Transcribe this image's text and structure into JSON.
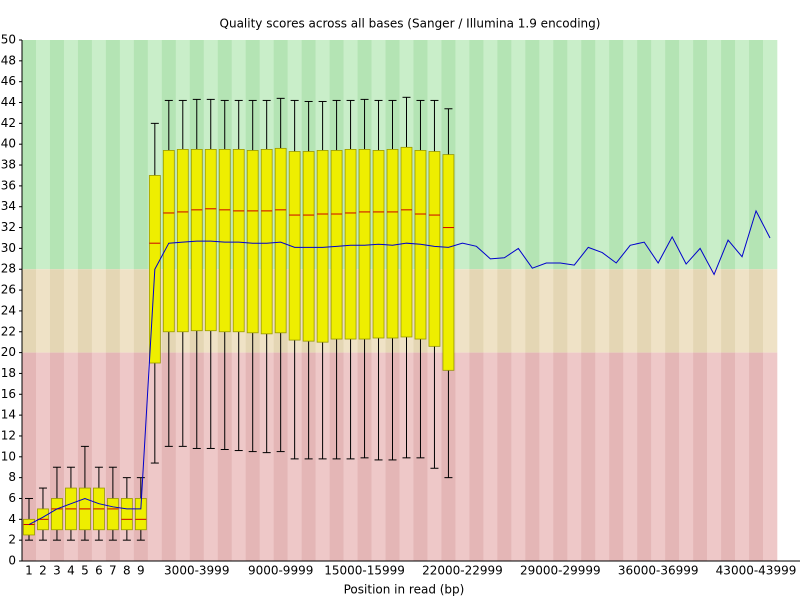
{
  "chart_data": {
    "type": "boxplot",
    "title": "Quality scores across all bases (Sanger / Illumina 1.9 encoding)",
    "x_label": "Position in read (bp)",
    "categories": [
      "1",
      "2",
      "3",
      "4",
      "5",
      "6",
      "7",
      "8",
      "9",
      null,
      null,
      null,
      "3000-3999",
      null,
      null,
      null,
      null,
      null,
      "9000-9999",
      null,
      null,
      null,
      null,
      null,
      "15000-15999",
      null,
      null,
      null,
      null,
      null,
      null,
      "22000-22999",
      null,
      null,
      null,
      null,
      null,
      null,
      "29000-29999",
      null,
      null,
      null,
      null,
      null,
      null,
      "36000-36999",
      null,
      null,
      null,
      null,
      null,
      null,
      "43000-43999",
      null
    ],
    "lower": [
      2,
      2,
      2,
      2,
      2,
      2,
      2,
      2,
      2,
      9.4,
      11,
      11,
      10.8,
      10.8,
      10.7,
      10.6,
      10.5,
      10.4,
      10.5,
      9.8,
      9.8,
      9.8,
      9.8,
      9.8,
      9.9,
      9.7,
      9.7,
      9.9,
      9.9,
      8.9,
      8,
      null,
      null,
      null,
      null,
      null,
      null,
      null,
      null,
      null,
      null,
      null,
      null,
      null,
      null,
      null,
      null,
      null,
      null,
      null,
      null,
      null,
      null,
      null
    ],
    "q1": [
      2.5,
      3,
      3,
      3,
      3,
      3,
      3,
      3,
      3,
      19,
      22,
      22,
      22.1,
      22.1,
      22,
      22,
      21.9,
      21.8,
      21.9,
      21.2,
      21.1,
      21,
      21.3,
      21.3,
      21.3,
      21.4,
      21.4,
      21.5,
      21.3,
      20.6,
      18.3,
      null,
      null,
      null,
      null,
      null,
      null,
      null,
      null,
      null,
      null,
      null,
      null,
      null,
      null,
      null,
      null,
      null,
      null,
      null,
      null,
      null,
      null,
      null
    ],
    "median": [
      3.5,
      4,
      5,
      5,
      5,
      5,
      5,
      4,
      4,
      30.5,
      33.4,
      33.5,
      33.7,
      33.8,
      33.7,
      33.6,
      33.6,
      33.6,
      33.7,
      33.2,
      33.2,
      33.3,
      33.3,
      33.4,
      33.5,
      33.5,
      33.5,
      33.7,
      33.3,
      33.2,
      32,
      null,
      null,
      null,
      null,
      null,
      null,
      null,
      null,
      null,
      null,
      null,
      null,
      null,
      null,
      null,
      null,
      null,
      null,
      null,
      null,
      null,
      null,
      null
    ],
    "q3": [
      4,
      5,
      6,
      7,
      7,
      7,
      6,
      6,
      6,
      37,
      39.4,
      39.5,
      39.5,
      39.5,
      39.5,
      39.5,
      39.4,
      39.5,
      39.6,
      39.3,
      39.3,
      39.4,
      39.4,
      39.5,
      39.5,
      39.4,
      39.5,
      39.7,
      39.4,
      39.3,
      39,
      null,
      null,
      null,
      null,
      null,
      null,
      null,
      null,
      null,
      null,
      null,
      null,
      null,
      null,
      null,
      null,
      null,
      null,
      null,
      null,
      null,
      null,
      null
    ],
    "upper": [
      6,
      7,
      9,
      9,
      11,
      9,
      9,
      8,
      8,
      42,
      44.2,
      44.2,
      44.3,
      44.3,
      44.2,
      44.2,
      44.2,
      44.2,
      44.4,
      44.2,
      44.1,
      44.1,
      44.2,
      44.2,
      44.3,
      44.2,
      44.2,
      44.5,
      44.2,
      44.2,
      43.4,
      null,
      null,
      null,
      null,
      null,
      null,
      null,
      null,
      null,
      null,
      null,
      null,
      null,
      null,
      null,
      null,
      null,
      null,
      null,
      null,
      null,
      null,
      null
    ],
    "mean": [
      3.5,
      4.2,
      5.0,
      5.5,
      6.0,
      5.5,
      5.2,
      5.0,
      5.0,
      28,
      30.5,
      30.6,
      30.7,
      30.7,
      30.6,
      30.6,
      30.5,
      30.5,
      30.6,
      30.1,
      30.1,
      30.1,
      30.2,
      30.3,
      30.3,
      30.4,
      30.3,
      30.5,
      30.4,
      30.2,
      30.1,
      30.5,
      30.2,
      29.0,
      29.1,
      30.0,
      28.1,
      28.6,
      28.6,
      28.4,
      30.1,
      29.6,
      28.6,
      30.3,
      30.6,
      28.6,
      31.1,
      28.5,
      30.0,
      27.5,
      30.8,
      29.2,
      33.6,
      31.0
    ],
    "box_color": "#eeee00",
    "median_color": "#cc0000",
    "mean_color": "#0000cc",
    "bands": [
      {
        "from": 28,
        "to": 50,
        "colors": [
          "#b4e4b4",
          "#c9eec9"
        ]
      },
      {
        "from": 20,
        "to": 28,
        "colors": [
          "#e4d6b4",
          "#efe2c6"
        ]
      },
      {
        "from": 0,
        "to": 20,
        "colors": [
          "#e4b6b6",
          "#eec8c8"
        ]
      }
    ],
    "ylim": [
      0,
      50
    ],
    "yticks": [
      0,
      2,
      4,
      6,
      8,
      10,
      12,
      14,
      16,
      18,
      20,
      22,
      24,
      26,
      28,
      30,
      32,
      34,
      36,
      38,
      40,
      42,
      44,
      46,
      48,
      50
    ]
  }
}
